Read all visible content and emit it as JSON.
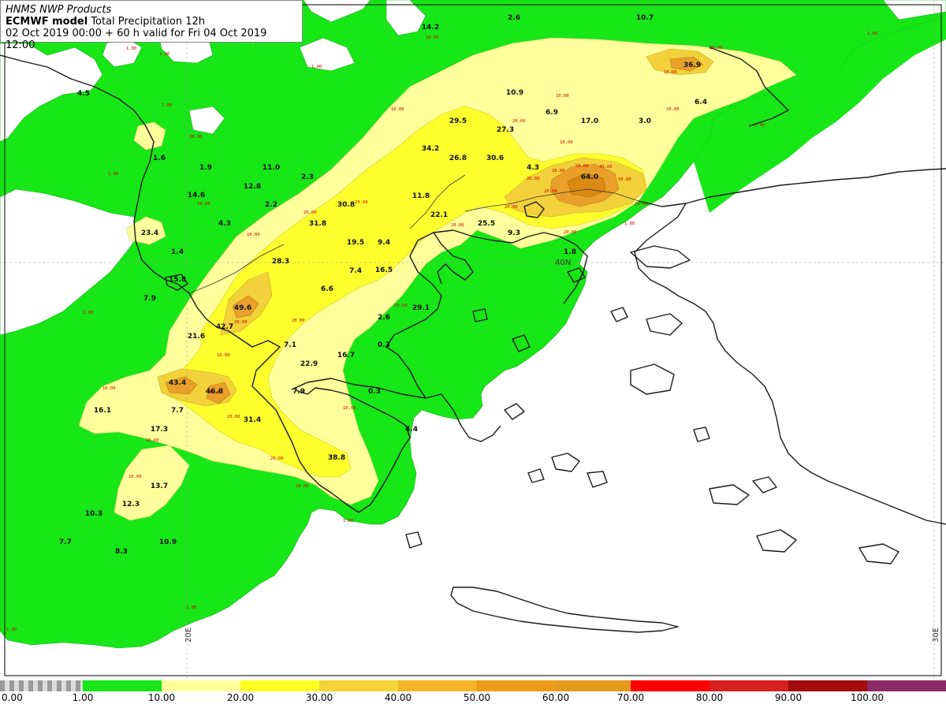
{
  "header": {
    "line1": "HNMS NWP Products",
    "model": "ECMWF model",
    "variable": "Total Precipitation 12h",
    "line3": "02 Oct 2019 00:00 + 60 h valid for Fri 04 Oct 2019 12:00"
  },
  "grid_labels": {
    "lon20": "20E",
    "lon30": "30E",
    "lat40": "40N"
  },
  "colors": {
    "green": "#17e617",
    "light_yellow": "#ffff9b",
    "yellow": "#ffff2e",
    "gold": "#f2d13a",
    "orange_light": "#f1b82e",
    "orange": "#e89a22",
    "coast": "#1a1a1a",
    "land": "#ffffff"
  },
  "colorbar": {
    "ticks": [
      "0.00",
      "1.00",
      "10.00",
      "20.00",
      "30.00",
      "40.00",
      "50.00",
      "60.00",
      "70.00",
      "80.00",
      "90.00",
      "100.00"
    ],
    "segment_colors": [
      "checker",
      "#17e617",
      "#ffff99",
      "#ffff22",
      "#f5d533",
      "#f3b527",
      "#ee9b1a",
      "#e6991f",
      "#ff0000",
      "#d8201f",
      "#a30d0d",
      "#8b2a65"
    ]
  },
  "values": [
    {
      "t": "14.2",
      "c": "k"
    },
    {
      "t": "2.6",
      "c": "k"
    },
    {
      "t": "10.7",
      "c": "k"
    },
    {
      "t": "36.9",
      "c": "k"
    },
    {
      "t": "4.5",
      "c": "k"
    },
    {
      "t": "10.9",
      "c": "k"
    },
    {
      "t": "6.9",
      "c": "k"
    },
    {
      "t": "17.0",
      "c": "k"
    },
    {
      "t": "3.0",
      "c": "k"
    },
    {
      "t": "6.4",
      "c": "k"
    },
    {
      "t": "29.5",
      "c": "k"
    },
    {
      "t": "27.3",
      "c": "k"
    },
    {
      "t": "34.2",
      "c": "k"
    },
    {
      "t": "26.8",
      "c": "k"
    },
    {
      "t": "30.6",
      "c": "k"
    },
    {
      "t": "4.3",
      "c": "k"
    },
    {
      "t": "64.0",
      "c": "k"
    },
    {
      "t": "1.6",
      "c": "k"
    },
    {
      "t": "1.9",
      "c": "k"
    },
    {
      "t": "11.0",
      "c": "k"
    },
    {
      "t": "2.3",
      "c": "k"
    },
    {
      "t": "12.8",
      "c": "k"
    },
    {
      "t": "14.6",
      "c": "k"
    },
    {
      "t": "2.2",
      "c": "k"
    },
    {
      "t": "30.8",
      "c": "k"
    },
    {
      "t": "11.8",
      "c": "k"
    },
    {
      "t": "22.1",
      "c": "k"
    },
    {
      "t": "25.5",
      "c": "k"
    },
    {
      "t": "9.3",
      "c": "k"
    },
    {
      "t": "23.4",
      "c": "k"
    },
    {
      "t": "4.3",
      "c": "k"
    },
    {
      "t": "31.8",
      "c": "k"
    },
    {
      "t": "19.5",
      "c": "k"
    },
    {
      "t": "9.4",
      "c": "k"
    },
    {
      "t": "1.8",
      "c": "k"
    },
    {
      "t": "1.4",
      "c": "k"
    },
    {
      "t": "28.3",
      "c": "k"
    },
    {
      "t": "7.4",
      "c": "k"
    },
    {
      "t": "16.5",
      "c": "k"
    },
    {
      "t": "15.8",
      "c": "k"
    },
    {
      "t": "7.9",
      "c": "k"
    },
    {
      "t": "6.6",
      "c": "k"
    },
    {
      "t": "49.6",
      "c": "k"
    },
    {
      "t": "29.1",
      "c": "k"
    },
    {
      "t": "2.6",
      "c": "k"
    },
    {
      "t": "42.7",
      "c": "k"
    },
    {
      "t": "21.6",
      "c": "k"
    },
    {
      "t": "7.1",
      "c": "k"
    },
    {
      "t": "0.3",
      "c": "k"
    },
    {
      "t": "16.7",
      "c": "k"
    },
    {
      "t": "22.9",
      "c": "k"
    },
    {
      "t": "43.4",
      "c": "k"
    },
    {
      "t": "46.8",
      "c": "k"
    },
    {
      "t": "7.9",
      "c": "k"
    },
    {
      "t": "0.3",
      "c": "k"
    },
    {
      "t": "16.1",
      "c": "k"
    },
    {
      "t": "7.7",
      "c": "k"
    },
    {
      "t": "31.4",
      "c": "k"
    },
    {
      "t": "17.3",
      "c": "k"
    },
    {
      "t": "4.4",
      "c": "k"
    },
    {
      "t": "38.8",
      "c": "k"
    },
    {
      "t": "13.7",
      "c": "k"
    },
    {
      "t": "12.3",
      "c": "k"
    },
    {
      "t": "10.3",
      "c": "k"
    },
    {
      "t": "7.7",
      "c": "k"
    },
    {
      "t": "8.3",
      "c": "k"
    },
    {
      "t": "10.9",
      "c": "k"
    }
  ],
  "contour_labels": [
    "10.00",
    "20.00",
    "30.00",
    "40.00",
    "50.00",
    "60.00",
    "1.00",
    "2.00"
  ]
}
